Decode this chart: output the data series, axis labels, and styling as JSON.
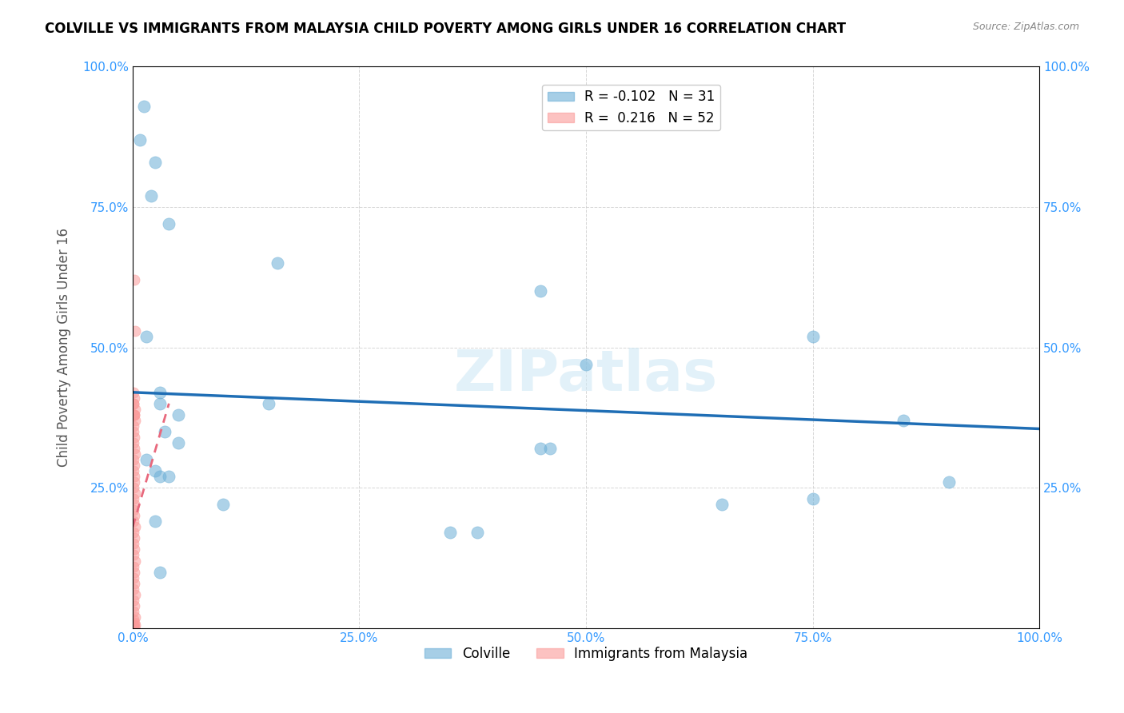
{
  "title": "COLVILLE VS IMMIGRANTS FROM MALAYSIA CHILD POVERTY AMONG GIRLS UNDER 16 CORRELATION CHART",
  "source": "Source: ZipAtlas.com",
  "xlabel_bottom": "",
  "ylabel": "Child Poverty Among Girls Under 16",
  "xlim": [
    0,
    1.0
  ],
  "ylim": [
    0,
    1.0
  ],
  "xticks": [
    0.0,
    0.25,
    0.5,
    0.75,
    1.0
  ],
  "yticks": [
    0.0,
    0.25,
    0.5,
    0.75,
    1.0
  ],
  "xticklabels": [
    "0.0%",
    "25.0%",
    "50.0%",
    "75.0%",
    "100.0%"
  ],
  "yticklabels": [
    "",
    "25.0%",
    "50.0%",
    "75.0%",
    "100.0%"
  ],
  "xticklabels_right": [
    "",
    "25.0%",
    "50.0%",
    "75.0%",
    "100.0%"
  ],
  "yticklabels_right": [
    "",
    "25.0%",
    "50.0%",
    "75.0%",
    "100.0%"
  ],
  "legend_r_blue": "-0.102",
  "legend_n_blue": "31",
  "legend_r_pink": "0.216",
  "legend_n_pink": "52",
  "blue_color": "#6baed6",
  "pink_color": "#fb9a99",
  "trend_blue_color": "#1f6eb5",
  "trend_pink_color": "#e8697d",
  "watermark": "ZIPatlas",
  "blue_scatter": [
    [
      0.008,
      0.87
    ],
    [
      0.012,
      0.93
    ],
    [
      0.02,
      0.77
    ],
    [
      0.025,
      0.83
    ],
    [
      0.04,
      0.72
    ],
    [
      0.015,
      0.52
    ],
    [
      0.16,
      0.65
    ],
    [
      0.03,
      0.4
    ],
    [
      0.03,
      0.42
    ],
    [
      0.035,
      0.35
    ],
    [
      0.05,
      0.38
    ],
    [
      0.15,
      0.4
    ],
    [
      0.45,
      0.6
    ],
    [
      0.5,
      0.47
    ],
    [
      0.75,
      0.52
    ],
    [
      0.85,
      0.37
    ],
    [
      0.45,
      0.32
    ],
    [
      0.46,
      0.32
    ],
    [
      0.65,
      0.22
    ],
    [
      0.75,
      0.23
    ],
    [
      0.9,
      0.26
    ],
    [
      0.35,
      0.17
    ],
    [
      0.38,
      0.17
    ],
    [
      0.015,
      0.3
    ],
    [
      0.025,
      0.28
    ],
    [
      0.03,
      0.27
    ],
    [
      0.04,
      0.27
    ],
    [
      0.05,
      0.33
    ],
    [
      0.1,
      0.22
    ],
    [
      0.025,
      0.19
    ],
    [
      0.03,
      0.1
    ]
  ],
  "pink_scatter": [
    [
      0.002,
      0.62
    ],
    [
      0.003,
      0.53
    ],
    [
      0.001,
      0.4
    ],
    [
      0.002,
      0.38
    ],
    [
      0.003,
      0.37
    ],
    [
      0.001,
      0.36
    ],
    [
      0.001,
      0.35
    ],
    [
      0.002,
      0.34
    ],
    [
      0.001,
      0.33
    ],
    [
      0.002,
      0.32
    ],
    [
      0.003,
      0.31
    ],
    [
      0.001,
      0.3
    ],
    [
      0.002,
      0.29
    ],
    [
      0.001,
      0.28
    ],
    [
      0.0015,
      0.27
    ],
    [
      0.002,
      0.26
    ],
    [
      0.001,
      0.25
    ],
    [
      0.003,
      0.24
    ],
    [
      0.001,
      0.23
    ],
    [
      0.002,
      0.22
    ],
    [
      0.001,
      0.21
    ],
    [
      0.002,
      0.2
    ],
    [
      0.001,
      0.19
    ],
    [
      0.003,
      0.18
    ],
    [
      0.001,
      0.17
    ],
    [
      0.002,
      0.16
    ],
    [
      0.001,
      0.15
    ],
    [
      0.002,
      0.14
    ],
    [
      0.001,
      0.13
    ],
    [
      0.003,
      0.12
    ],
    [
      0.001,
      0.11
    ],
    [
      0.002,
      0.1
    ],
    [
      0.001,
      0.09
    ],
    [
      0.002,
      0.08
    ],
    [
      0.001,
      0.07
    ],
    [
      0.003,
      0.06
    ],
    [
      0.001,
      0.05
    ],
    [
      0.002,
      0.04
    ],
    [
      0.001,
      0.03
    ],
    [
      0.003,
      0.02
    ],
    [
      0.001,
      0.015
    ],
    [
      0.002,
      0.01
    ],
    [
      0.003,
      0.005
    ],
    [
      0.001,
      0.005
    ],
    [
      0.002,
      0.003
    ],
    [
      0.001,
      0.002
    ],
    [
      0.002,
      0.38
    ],
    [
      0.001,
      0.38
    ],
    [
      0.003,
      0.39
    ],
    [
      0.001,
      0.4
    ],
    [
      0.002,
      0.41
    ],
    [
      0.001,
      0.42
    ]
  ],
  "blue_trend_x": [
    0.0,
    1.0
  ],
  "blue_trend_y": [
    0.42,
    0.355
  ],
  "pink_trend_x": [
    0.0,
    0.04
  ],
  "pink_trend_y": [
    0.18,
    0.4
  ]
}
